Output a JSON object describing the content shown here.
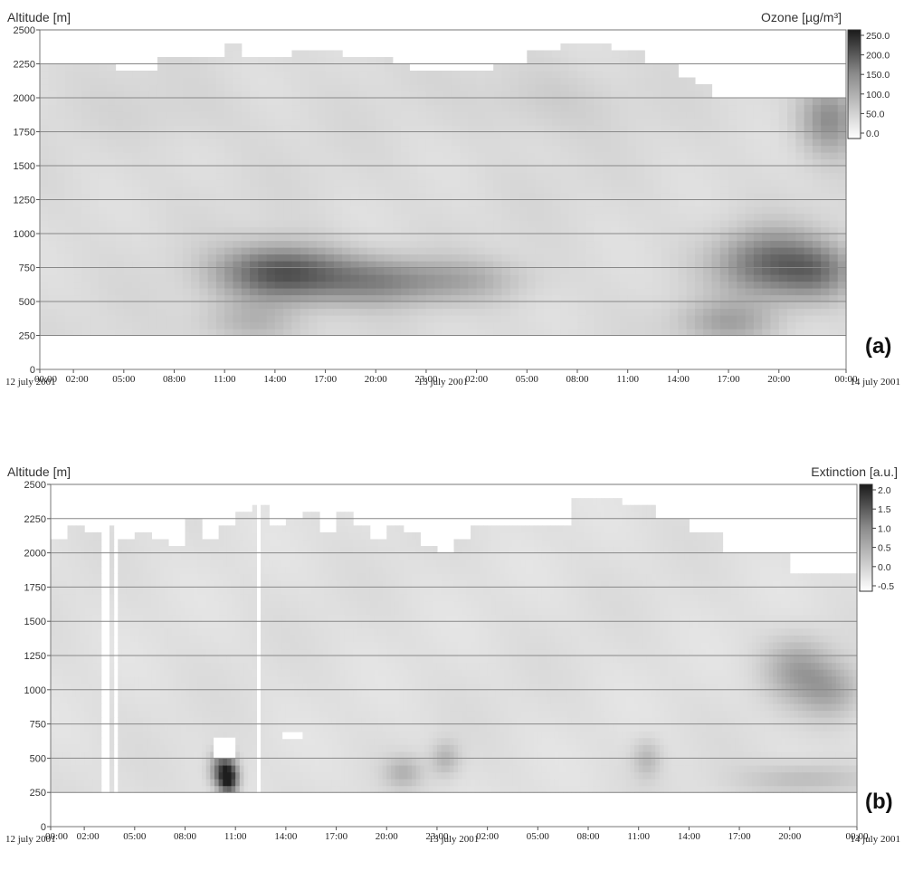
{
  "chart_data": [
    {
      "type": "heatmap",
      "panel_label": "(a)",
      "ylabel": "Altitude [m]",
      "colorbar_label": "Ozone [µg/m³]",
      "yticks": [
        0,
        250,
        500,
        750,
        1000,
        1250,
        1500,
        1750,
        2000,
        2250,
        2500
      ],
      "ylim": [
        0,
        2500
      ],
      "xticks": [
        "00:00",
        "02:00",
        "05:00",
        "08:00",
        "11:00",
        "14:00",
        "17:00",
        "20:00",
        "23:00",
        "02:00",
        "05:00",
        "08:00",
        "11:00",
        "14:00",
        "17:00",
        "20:00",
        "00:00"
      ],
      "xtick_hours": [
        0,
        2,
        5,
        8,
        11,
        14,
        17,
        20,
        23,
        26,
        29,
        32,
        35,
        38,
        41,
        44,
        48
      ],
      "xlim_hours": [
        0,
        48
      ],
      "date_labels": [
        {
          "text": "12 july 2001",
          "hour": 0
        },
        {
          "text": "13 july 2001",
          "hour": 24
        },
        {
          "text": "14 july 2001",
          "hour": 48
        }
      ],
      "colorbar_ticks": [
        "250.0",
        "200.0",
        "150.0",
        "100.0",
        "50.0",
        "0.0"
      ],
      "colorbar_values": [
        250,
        200,
        150,
        100,
        50,
        0
      ],
      "grid": true,
      "data_bottom_m": 250,
      "top_profile": [
        [
          0,
          2250
        ],
        [
          4.5,
          2200
        ],
        [
          7,
          2280
        ],
        [
          11,
          2380
        ],
        [
          12.2,
          2280
        ],
        [
          15,
          2340
        ],
        [
          18,
          2280
        ],
        [
          21,
          2250
        ],
        [
          22,
          2200
        ],
        [
          24,
          2180
        ],
        [
          27,
          2250
        ],
        [
          29,
          2310
        ],
        [
          31,
          2370
        ],
        [
          34,
          2320
        ],
        [
          36,
          2230
        ],
        [
          38,
          2150
        ],
        [
          39,
          2100
        ],
        [
          40,
          2000
        ],
        [
          48,
          2000
        ]
      ],
      "hotspots": [
        {
          "t": 14,
          "alt": 720,
          "st": 2.4,
          "sa": 140,
          "v": 170
        },
        {
          "t": 17.5,
          "alt": 680,
          "st": 3.2,
          "sa": 130,
          "v": 110
        },
        {
          "t": 21,
          "alt": 640,
          "st": 2.5,
          "sa": 110,
          "v": 90
        },
        {
          "t": 25.5,
          "alt": 660,
          "st": 2.5,
          "sa": 110,
          "v": 80
        },
        {
          "t": 12.5,
          "alt": 350,
          "st": 2.0,
          "sa": 110,
          "v": 80
        },
        {
          "t": 43.5,
          "alt": 780,
          "st": 2.2,
          "sa": 170,
          "v": 170
        },
        {
          "t": 46.5,
          "alt": 720,
          "st": 1.6,
          "sa": 140,
          "v": 120
        },
        {
          "t": 41,
          "alt": 350,
          "st": 2.0,
          "sa": 110,
          "v": 100
        },
        {
          "t": 47,
          "alt": 1850,
          "st": 1.2,
          "sa": 180,
          "v": 130
        },
        {
          "t": 8,
          "alt": 1900,
          "st": 3.0,
          "sa": 180,
          "v": 40
        },
        {
          "t": 30,
          "alt": 2000,
          "st": 3.0,
          "sa": 180,
          "v": 50
        }
      ],
      "baseline_value": 30
    },
    {
      "type": "heatmap",
      "panel_label": "(b)",
      "ylabel": "Altitude [m]",
      "colorbar_label": "Extinction [a.u.]",
      "yticks": [
        0,
        250,
        500,
        750,
        1000,
        1250,
        1500,
        1750,
        2000,
        2250,
        2500
      ],
      "ylim": [
        0,
        2500
      ],
      "xticks": [
        "00:00",
        "02:00",
        "05:00",
        "08:00",
        "11:00",
        "14:00",
        "17:00",
        "20:00",
        "23:00",
        "02:00",
        "05:00",
        "08:00",
        "11:00",
        "14:00",
        "17:00",
        "20:00",
        "00:00"
      ],
      "xtick_hours": [
        0,
        2,
        5,
        8,
        11,
        14,
        17,
        20,
        23,
        26,
        29,
        32,
        35,
        38,
        41,
        44,
        48
      ],
      "xlim_hours": [
        0,
        48
      ],
      "date_labels": [
        {
          "text": "12 july 2001",
          "hour": 0
        },
        {
          "text": "13 july 2001",
          "hour": 24
        },
        {
          "text": "14 july 2001",
          "hour": 48
        }
      ],
      "colorbar_ticks": [
        "2.0",
        "1.5",
        "1.0",
        "0.5",
        "0.0",
        "-0.5"
      ],
      "colorbar_values": [
        2.0,
        1.5,
        1.0,
        0.5,
        0.0,
        -0.5
      ],
      "grid": true,
      "data_bottom_m": 250,
      "top_profile": [
        [
          0,
          2100
        ],
        [
          1,
          2200
        ],
        [
          2,
          2150
        ],
        [
          3,
          2200
        ],
        [
          4,
          2100
        ],
        [
          5,
          2150
        ],
        [
          6,
          2100
        ],
        [
          7,
          2050
        ],
        [
          8,
          2250
        ],
        [
          9,
          2100
        ],
        [
          10,
          2200
        ],
        [
          11,
          2280
        ],
        [
          12,
          2350
        ],
        [
          13,
          2200
        ],
        [
          14,
          2250
        ],
        [
          15,
          2280
        ],
        [
          16,
          2150
        ],
        [
          17,
          2300
        ],
        [
          18,
          2200
        ],
        [
          19,
          2100
        ],
        [
          20,
          2200
        ],
        [
          21,
          2150
        ],
        [
          22,
          2050
        ],
        [
          23,
          2000
        ],
        [
          24,
          2100
        ],
        [
          25,
          2200
        ],
        [
          30,
          2200
        ],
        [
          31,
          2380
        ],
        [
          34,
          2350
        ],
        [
          36,
          2230
        ],
        [
          38,
          2150
        ],
        [
          40,
          2000
        ],
        [
          43,
          2000
        ],
        [
          44,
          1850
        ],
        [
          48,
          1900
        ]
      ],
      "gaps_hours": [
        [
          3.1,
          3.4
        ],
        [
          3.8,
          4.1
        ],
        [
          12.2,
          12.45
        ]
      ],
      "white_boxes": [
        {
          "t0": 9.7,
          "t1": 11.0,
          "alt0": 500,
          "alt1": 650
        },
        {
          "t0": 13.8,
          "t1": 15.0,
          "alt0": 640,
          "alt1": 690
        }
      ],
      "hotspots": [
        {
          "t": 10.6,
          "alt": 350,
          "st": 0.4,
          "sa": 80,
          "v": 1.9
        },
        {
          "t": 10.2,
          "alt": 420,
          "st": 0.5,
          "sa": 90,
          "v": 1.2
        },
        {
          "t": 44.5,
          "alt": 1150,
          "st": 1.4,
          "sa": 160,
          "v": 0.5
        },
        {
          "t": 46.5,
          "alt": 1000,
          "st": 1.3,
          "sa": 140,
          "v": 0.4
        },
        {
          "t": 21,
          "alt": 400,
          "st": 0.8,
          "sa": 80,
          "v": 0.3
        },
        {
          "t": 23.5,
          "alt": 500,
          "st": 0.6,
          "sa": 90,
          "v": 0.3
        },
        {
          "t": 35.5,
          "alt": 500,
          "st": 0.6,
          "sa": 100,
          "v": 0.25
        },
        {
          "t": 45,
          "alt": 350,
          "st": 2.5,
          "sa": 80,
          "v": 0.25
        }
      ],
      "baseline_value": -0.25
    }
  ]
}
